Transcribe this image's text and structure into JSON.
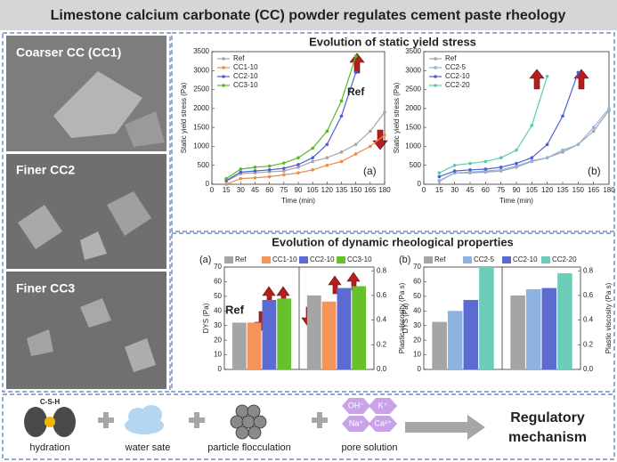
{
  "header": {
    "title": "Limestone calcium carbonate (CC) powder regulates cement paste rheology"
  },
  "images": [
    {
      "label": "Coarser CC (CC1)"
    },
    {
      "label": "Finer CC2"
    },
    {
      "label": "Finer CC3"
    }
  ],
  "sections": {
    "static_title": "Evolution of static yield stress",
    "dynamic_title": "Evolution of dynamic rheological properties"
  },
  "chart_data": [
    {
      "type": "line",
      "label": "(a)",
      "annotation": "Ref",
      "xlabel": "Time (min)",
      "ylabel": "Static yield stress (Pa)",
      "x": [
        15,
        30,
        45,
        60,
        75,
        90,
        105,
        120,
        135,
        150,
        165,
        180
      ],
      "xlim": [
        0,
        180
      ],
      "xticks": [
        0,
        15,
        30,
        45,
        60,
        75,
        90,
        105,
        120,
        135,
        150,
        165,
        180
      ],
      "ylim": [
        0,
        3500
      ],
      "yticks": [
        0,
        500,
        1000,
        1500,
        2000,
        2500,
        3000,
        3500
      ],
      "legend": "upper left",
      "series": [
        {
          "name": "Ref",
          "color": "#a5a5a5",
          "values": [
            80,
            280,
            300,
            330,
            350,
            450,
            600,
            700,
            850,
            1050,
            1400,
            1900
          ]
        },
        {
          "name": "CC1-10",
          "color": "#f08a4b",
          "values": [
            0,
            150,
            170,
            200,
            250,
            300,
            380,
            500,
            600,
            800,
            1000,
            1300
          ]
        },
        {
          "name": "CC2-10",
          "color": "#4e5fd0",
          "values": [
            100,
            320,
            350,
            380,
            420,
            520,
            700,
            1050,
            1800,
            2950,
            null,
            null
          ]
        },
        {
          "name": "CC3-10",
          "color": "#58b82a",
          "values": [
            150,
            400,
            450,
            480,
            560,
            700,
            950,
            1400,
            2200,
            3380,
            null,
            null
          ]
        }
      ]
    },
    {
      "type": "line",
      "label": "(b)",
      "xlabel": "Time (min)",
      "ylabel": "Static yield stress (Pa)",
      "x": [
        15,
        30,
        45,
        60,
        75,
        90,
        105,
        120,
        135,
        150,
        165,
        180
      ],
      "xlim": [
        0,
        180
      ],
      "xticks": [
        0,
        15,
        30,
        45,
        60,
        75,
        90,
        105,
        120,
        135,
        150,
        165,
        180
      ],
      "ylim": [
        0,
        3500
      ],
      "yticks": [
        0,
        500,
        1000,
        1500,
        2000,
        2500,
        3000,
        3500
      ],
      "legend": "upper left",
      "series": [
        {
          "name": "Ref",
          "color": "#a5a5a5",
          "values": [
            80,
            300,
            300,
            320,
            350,
            450,
            600,
            700,
            850,
            1050,
            1400,
            1950
          ]
        },
        {
          "name": "CC2-5",
          "color": "#8fb3e0",
          "values": [
            100,
            300,
            320,
            350,
            380,
            480,
            620,
            700,
            900,
            1050,
            1500,
            2000
          ]
        },
        {
          "name": "CC2-10",
          "color": "#4e5fd0",
          "values": [
            200,
            350,
            380,
            400,
            450,
            550,
            700,
            1050,
            1800,
            2950,
            null,
            null
          ]
        },
        {
          "name": "CC2-20",
          "color": "#5cc9b0",
          "values": [
            300,
            500,
            550,
            600,
            700,
            900,
            1550,
            2850,
            null,
            null,
            null,
            null
          ]
        }
      ]
    },
    {
      "type": "bar",
      "label": "(a)",
      "annotation": "Ref",
      "ylabel": "DYS (Pa)",
      "y2label": "Plastic viscosity (Pa s)",
      "axes": [
        "y",
        "y2"
      ],
      "ylim": [
        0,
        70
      ],
      "yticks": [
        0,
        10,
        20,
        30,
        40,
        50,
        60,
        70
      ],
      "y2lim": [
        0,
        0.83
      ],
      "y2ticks": [
        {
          "value": 0,
          "label": "0.0"
        },
        0.2,
        0.4,
        0.6,
        0.8
      ],
      "series": [
        {
          "name": "Ref",
          "color": "#a5a5a5",
          "values": [
            32,
            0.6
          ]
        },
        {
          "name": "CC1-10",
          "color": "#f4935a",
          "values": [
            32,
            0.55
          ]
        },
        {
          "name": "CC2-10",
          "color": "#5b6bd1",
          "values": [
            47.5,
            0.66
          ]
        },
        {
          "name": "CC3-10",
          "color": "#66c12c",
          "values": [
            48.5,
            0.675
          ]
        }
      ]
    },
    {
      "type": "bar",
      "label": "(b)",
      "ylabel": "DYS (Pa)",
      "y2label": "Plastic viscosity (Pa s)",
      "axes": [
        "y",
        "y2"
      ],
      "ylim": [
        0,
        70
      ],
      "yticks": [
        0,
        10,
        20,
        30,
        40,
        50,
        60,
        70
      ],
      "y2lim": [
        0,
        0.83
      ],
      "y2ticks": [
        {
          "value": 0,
          "label": "0.0"
        },
        0.2,
        0.4,
        0.6,
        0.8
      ],
      "series": [
        {
          "name": "Ref",
          "color": "#a5a5a5",
          "values": [
            32.5,
            0.6
          ]
        },
        {
          "name": "CC2-5",
          "color": "#8fb3e0",
          "values": [
            40,
            0.65
          ]
        },
        {
          "name": "CC2-10",
          "color": "#5b6bd1",
          "values": [
            47.5,
            0.66
          ]
        },
        {
          "name": "CC2-20",
          "color": "#6dcdb8",
          "values": [
            70,
            0.78
          ]
        }
      ]
    }
  ],
  "mechanism": {
    "csh": "C-S-H",
    "items": [
      "hydration",
      "water sate",
      "particle flocculation",
      "pore solution"
    ],
    "ions": [
      "OH⁻",
      "K⁺",
      "Na⁺",
      "Ca²⁺"
    ],
    "result": [
      "Regulatory",
      "mechanism"
    ]
  }
}
